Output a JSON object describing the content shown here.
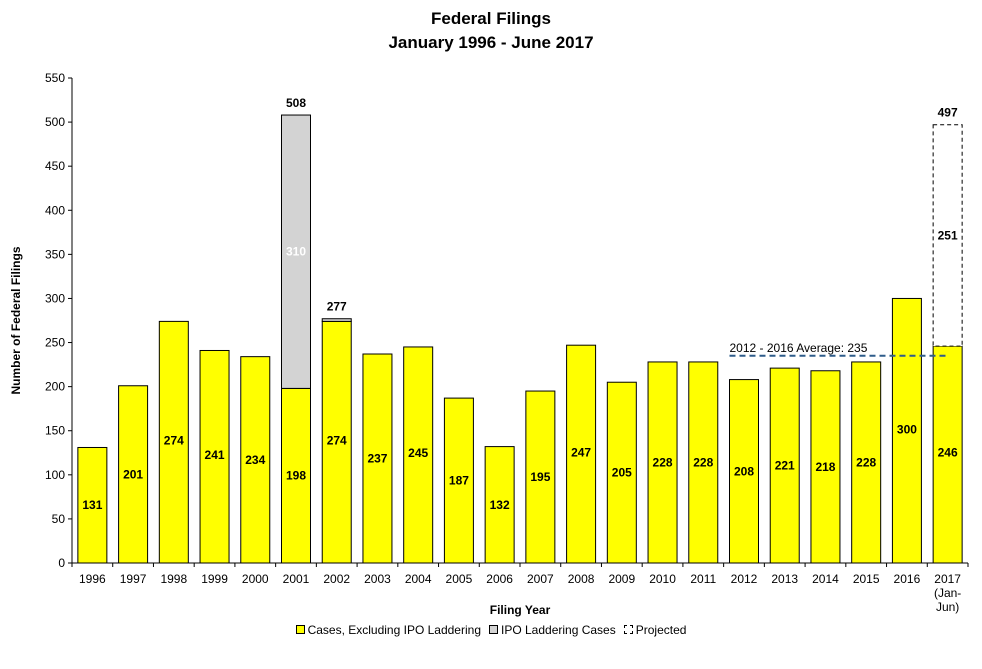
{
  "chart_data": {
    "type": "bar",
    "title": "Federal Filings",
    "subtitle": "January 1996 -  June 2017",
    "xlabel": "Filing Year",
    "ylabel": "Number of Federal Filings",
    "ylim": [
      0,
      550
    ],
    "yticks": [
      0,
      50,
      100,
      150,
      200,
      250,
      300,
      350,
      400,
      450,
      500,
      550
    ],
    "categories": [
      "1996",
      "1997",
      "1998",
      "1999",
      "2000",
      "2001",
      "2002",
      "2003",
      "2004",
      "2005",
      "2006",
      "2007",
      "2008",
      "2009",
      "2010",
      "2011",
      "2012",
      "2013",
      "2014",
      "2015",
      "2016",
      "2017"
    ],
    "category_sublabels": {
      "2017": [
        "(Jan-",
        "Jun)"
      ]
    },
    "stacked": true,
    "grid": false,
    "legend_position": "bottom",
    "series": [
      {
        "name": "Cases, Excluding IPO Laddering",
        "color": "#ffff00",
        "values": [
          131,
          201,
          274,
          241,
          234,
          198,
          274,
          237,
          245,
          187,
          132,
          195,
          247,
          205,
          228,
          228,
          208,
          221,
          218,
          228,
          300,
          246
        ]
      },
      {
        "name": "IPO Laddering Cases",
        "color": "#d3d3d3",
        "values": [
          0,
          0,
          0,
          0,
          0,
          310,
          3,
          0,
          0,
          0,
          0,
          0,
          0,
          0,
          0,
          0,
          0,
          0,
          0,
          0,
          0,
          0
        ]
      },
      {
        "name": "Projected",
        "color": "#ffffff",
        "style": "dashed",
        "values": [
          0,
          0,
          0,
          0,
          0,
          0,
          0,
          0,
          0,
          0,
          0,
          0,
          0,
          0,
          0,
          0,
          0,
          0,
          0,
          0,
          0,
          251
        ]
      }
    ],
    "bar_labels": {
      "inside_bottom": [
        "131",
        "201",
        "274",
        "241",
        "234",
        "198",
        "274",
        "237",
        "245",
        "187",
        "132",
        "195",
        "247",
        "205",
        "228",
        "228",
        "208",
        "221",
        "218",
        "228",
        "300",
        "246"
      ],
      "inside_laddering": {
        "2001": "310"
      },
      "inside_projected": {
        "2017": "251"
      },
      "totals_above": {
        "2001": "508",
        "2002": "277",
        "2017": "497"
      }
    },
    "reference_line": {
      "label": "2012 - 2016 Average: 235",
      "value": 235,
      "from_category": "2012",
      "to_category": "2017",
      "color": "#2e5c8a",
      "style": "dashed"
    }
  }
}
